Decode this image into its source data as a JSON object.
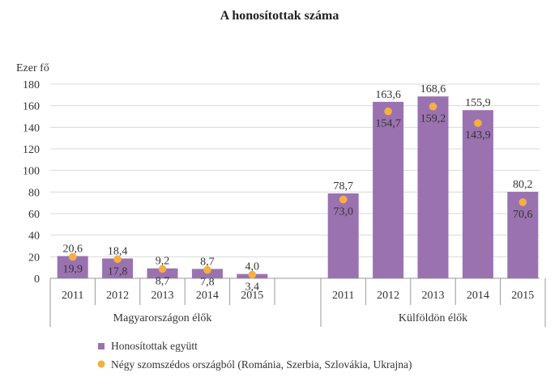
{
  "chart_data": {
    "type": "bar",
    "title": "A honosítottak száma",
    "ylabel": "Ezer fő",
    "ylim": [
      0,
      180
    ],
    "y_ticks": [
      "0",
      "20",
      "40",
      "60",
      "80",
      "100",
      "120",
      "140",
      "160",
      "180"
    ],
    "groups": [
      {
        "name": "Magyarországon élők",
        "categories": [
          "2011",
          "2012",
          "2013",
          "2014",
          "2015"
        ],
        "bar_values": [
          20.6,
          18.4,
          9.2,
          8.7,
          4.0
        ],
        "bar_labels": [
          "20,6",
          "18,4",
          "9,2",
          "8,7",
          "4,0"
        ],
        "dot_values": [
          19.9,
          17.8,
          8.7,
          7.8,
          3.4
        ],
        "dot_labels": [
          "19,9",
          "17,8",
          "8,7",
          "7,8",
          "3,4"
        ]
      },
      {
        "name": "Külföldön élők",
        "categories": [
          "2011",
          "2012",
          "2013",
          "2014",
          "2015"
        ],
        "bar_values": [
          78.7,
          163.6,
          168.6,
          155.9,
          80.2
        ],
        "bar_labels": [
          "78,7",
          "163,6",
          "168,6",
          "155,9",
          "80,2"
        ],
        "dot_values": [
          73.0,
          154.7,
          159.2,
          143.9,
          70.6
        ],
        "dot_labels": [
          "73,0",
          "154,7",
          "159,2",
          "143,9",
          "70,6"
        ]
      }
    ],
    "series": [
      {
        "name": "Honosítottak együtt",
        "kind": "bar",
        "color": "#9b72b0"
      },
      {
        "name": "Négy szomszédos országból (Románia, Szerbia, Szlovákia, Ukrajna)",
        "kind": "dot",
        "color": "#f5b041"
      }
    ],
    "grid": true,
    "legend_position": "bottom-left"
  }
}
